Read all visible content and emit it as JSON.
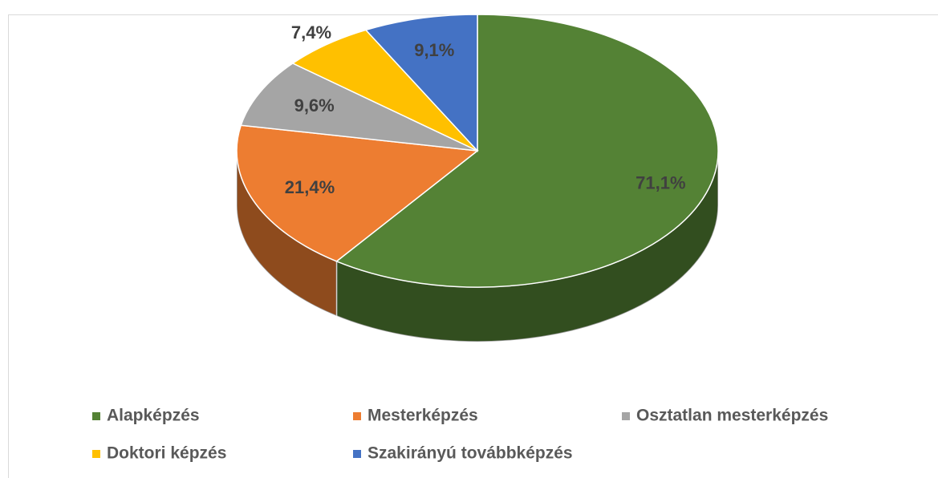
{
  "chart_data": {
    "type": "pie",
    "categories": [
      "Alapképzés",
      "Mesterképzés",
      "Osztatlan mesterképzés",
      "Doktori képzés",
      "Szakirányú továbbképzés"
    ],
    "values": [
      71.1,
      21.4,
      9.6,
      7.4,
      9.1
    ],
    "value_labels": [
      "71,1%",
      "21,4%",
      "9,6%",
      "7,4%",
      "9,1%"
    ],
    "colors": [
      "#548235",
      "#ed7d31",
      "#a5a5a5",
      "#ffc000",
      "#4472c4"
    ],
    "legend": "bottom"
  }
}
